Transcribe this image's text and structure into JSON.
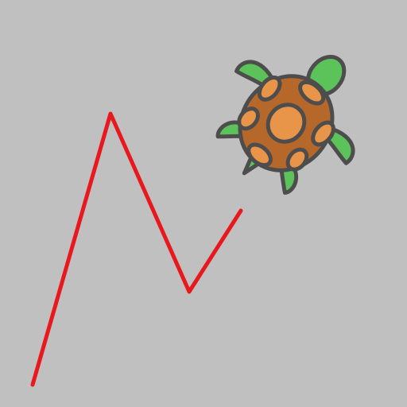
{
  "scene": {
    "background_color": "#c0c0c0",
    "trail": {
      "color": "#e8191e"
    },
    "turtle": {
      "icon": "turtle-icon",
      "colors": {
        "shell": "#b5682a",
        "spots": "#e8954a",
        "skin": "#5cc35a",
        "outline": "#4d4d4d"
      }
    }
  }
}
